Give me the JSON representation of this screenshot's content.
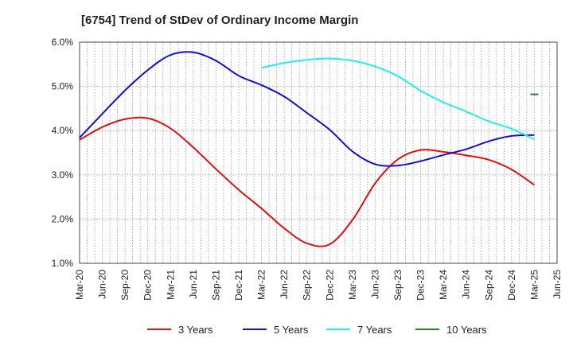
{
  "chart_data": {
    "type": "line",
    "title": "[6754]  Trend of StDev of Ordinary Income Margin",
    "xlabel": "",
    "ylabel": "",
    "x_ticks": [
      "Mar-20",
      "Jun-20",
      "Sep-20",
      "Dec-20",
      "Mar-21",
      "Jun-21",
      "Sep-21",
      "Dec-21",
      "Mar-22",
      "Jun-22",
      "Sep-22",
      "Dec-22",
      "Mar-23",
      "Jun-23",
      "Sep-23",
      "Dec-23",
      "Mar-24",
      "Jun-24",
      "Sep-24",
      "Dec-24",
      "Mar-25",
      "Jun-25"
    ],
    "y_ticks": [
      "1.0%",
      "2.0%",
      "3.0%",
      "4.0%",
      "5.0%",
      "6.0%"
    ],
    "ylim": [
      1.0,
      6.0
    ],
    "grid": true,
    "legend_position": "bottom",
    "series": [
      {
        "name": "3 Years",
        "color": "#dd1111",
        "values": [
          3.79,
          4.08,
          4.26,
          4.28,
          4.05,
          3.62,
          3.13,
          2.66,
          2.24,
          1.79,
          1.45,
          1.43,
          1.98,
          2.81,
          3.35,
          3.56,
          3.52,
          3.44,
          3.34,
          3.12,
          2.77
        ]
      },
      {
        "name": "5 Years",
        "color": "#1111cc",
        "values": [
          3.84,
          4.38,
          4.91,
          5.37,
          5.71,
          5.77,
          5.58,
          5.24,
          5.03,
          4.77,
          4.4,
          4.02,
          3.53,
          3.24,
          3.21,
          3.31,
          3.45,
          3.58,
          3.76,
          3.88,
          3.9
        ]
      },
      {
        "name": "7 Years",
        "color": "#22eeee",
        "values": [
          null,
          null,
          null,
          null,
          null,
          null,
          null,
          null,
          5.42,
          5.53,
          5.6,
          5.63,
          5.58,
          5.45,
          5.23,
          4.9,
          4.64,
          4.43,
          4.21,
          4.04,
          3.8
        ]
      },
      {
        "name": "10 Years",
        "color": "#228822",
        "values": [
          null,
          null,
          null,
          null,
          null,
          null,
          null,
          null,
          null,
          null,
          null,
          null,
          null,
          null,
          null,
          null,
          null,
          null,
          null,
          null,
          4.82
        ]
      }
    ]
  }
}
